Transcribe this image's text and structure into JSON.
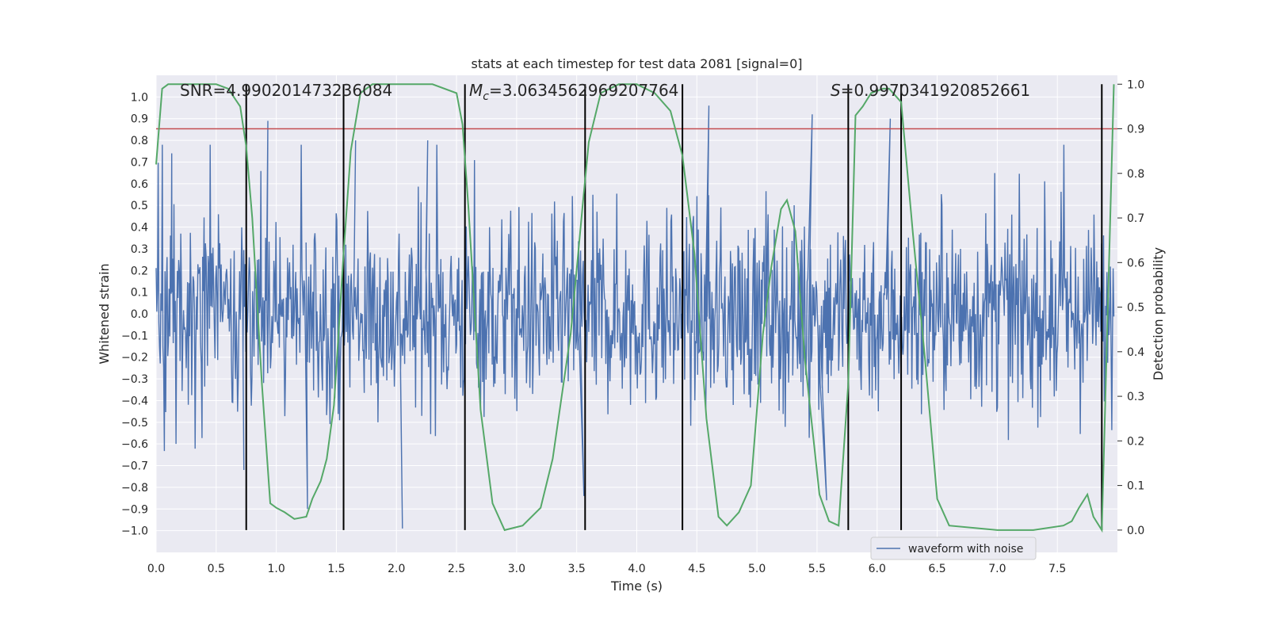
{
  "chart_data": {
    "type": "line",
    "title": "stats at each timestep for test data 2081 [signal=0]",
    "xlabel": "Time (s)",
    "ylabel": "Whitened strain",
    "y2label": "Detection probability",
    "xlim": [
      0.0,
      8.0
    ],
    "ylim": [
      -1.1,
      1.1
    ],
    "y2lim": [
      -0.05,
      1.02
    ],
    "xticks": [
      "0.0",
      "0.5",
      "1.0",
      "1.5",
      "2.0",
      "2.5",
      "3.0",
      "3.5",
      "4.0",
      "4.5",
      "5.0",
      "5.5",
      "6.0",
      "6.5",
      "7.0",
      "7.5"
    ],
    "yticks": [
      "1.0",
      "0.9",
      "0.8",
      "0.7",
      "0.6",
      "0.5",
      "0.4",
      "0.3",
      "0.2",
      "0.1",
      "0.0",
      "-0.1",
      "-0.2",
      "-0.3",
      "-0.4",
      "-0.5",
      "-0.6",
      "-0.7",
      "-0.8",
      "-0.9",
      "-1.0"
    ],
    "y2ticks": [
      "1.0",
      "0.9",
      "0.8",
      "0.7",
      "0.6",
      "0.5",
      "0.4",
      "0.3",
      "0.2",
      "0.1",
      "0.0"
    ],
    "grid": true,
    "legend": {
      "entries": [
        "waveform with noise"
      ],
      "placement": "lower-center-right"
    },
    "annotations": {
      "snr": "SNR=4.990201473236084",
      "mc_symbol": "M",
      "mc_sub": "c",
      "mc_value": "=3.0634562969207764",
      "s_symbol": "S",
      "s_value": "=0.9970341920852661"
    },
    "threshold": {
      "y2": 0.9,
      "color": "#c44e52"
    },
    "vertical_lines_x": [
      0.75,
      1.56,
      2.57,
      3.57,
      4.38,
      5.76,
      6.2,
      7.87
    ],
    "series": [
      {
        "name": "waveform with noise",
        "color": "#4c72b0",
        "spike_peaks": [
          {
            "x": 0.13,
            "y": 0.74
          },
          {
            "x": 0.93,
            "y": 0.89
          },
          {
            "x": 1.66,
            "y": 0.8
          },
          {
            "x": 2.26,
            "y": 0.8
          },
          {
            "x": 4.6,
            "y": 0.96
          },
          {
            "x": 5.46,
            "y": 0.92
          },
          {
            "x": 6.11,
            "y": 0.9
          },
          {
            "x": 2.05,
            "y": -0.99
          },
          {
            "x": 1.26,
            "y": -0.9
          },
          {
            "x": 5.58,
            "y": -0.86
          },
          {
            "x": 0.73,
            "y": -0.72
          },
          {
            "x": 3.56,
            "y": -0.84
          }
        ]
      },
      {
        "name": "Detection probability",
        "color": "#55a868",
        "axis": "right",
        "x": [
          0.0,
          0.05,
          0.1,
          0.5,
          0.6,
          0.7,
          0.75,
          0.8,
          0.88,
          0.95,
          1.0,
          1.07,
          1.15,
          1.25,
          1.3,
          1.37,
          1.42,
          1.48,
          1.52,
          1.56,
          1.62,
          1.7,
          1.8,
          2.0,
          2.3,
          2.5,
          2.55,
          2.6,
          2.7,
          2.8,
          2.9,
          3.05,
          3.2,
          3.3,
          3.45,
          3.55,
          3.6,
          3.7,
          3.85,
          4.0,
          4.15,
          4.28,
          4.38,
          4.48,
          4.58,
          4.68,
          4.75,
          4.85,
          4.95,
          5.05,
          5.12,
          5.2,
          5.25,
          5.32,
          5.4,
          5.52,
          5.6,
          5.68,
          5.76,
          5.82,
          5.88,
          5.95,
          6.05,
          6.1,
          6.2,
          6.3,
          6.4,
          6.5,
          6.6,
          7.0,
          7.3,
          7.55,
          7.62,
          7.68,
          7.75,
          7.8,
          7.87,
          7.97
        ],
        "y": [
          0.82,
          0.99,
          1.0,
          1.0,
          0.99,
          0.95,
          0.86,
          0.7,
          0.33,
          0.06,
          0.05,
          0.04,
          0.025,
          0.03,
          0.07,
          0.11,
          0.16,
          0.28,
          0.45,
          0.62,
          0.85,
          0.98,
          1.0,
          1.0,
          1.0,
          0.98,
          0.91,
          0.72,
          0.27,
          0.06,
          0.0,
          0.01,
          0.05,
          0.16,
          0.44,
          0.73,
          0.87,
          0.98,
          1.0,
          1.0,
          0.98,
          0.94,
          0.84,
          0.62,
          0.25,
          0.03,
          0.01,
          0.04,
          0.1,
          0.44,
          0.59,
          0.72,
          0.74,
          0.67,
          0.38,
          0.08,
          0.02,
          0.01,
          0.33,
          0.93,
          0.95,
          0.98,
          0.99,
          0.99,
          0.96,
          0.66,
          0.38,
          0.07,
          0.01,
          0.0,
          0.0,
          0.01,
          0.02,
          0.05,
          0.08,
          0.03,
          0.0,
          1.0
        ]
      }
    ]
  }
}
